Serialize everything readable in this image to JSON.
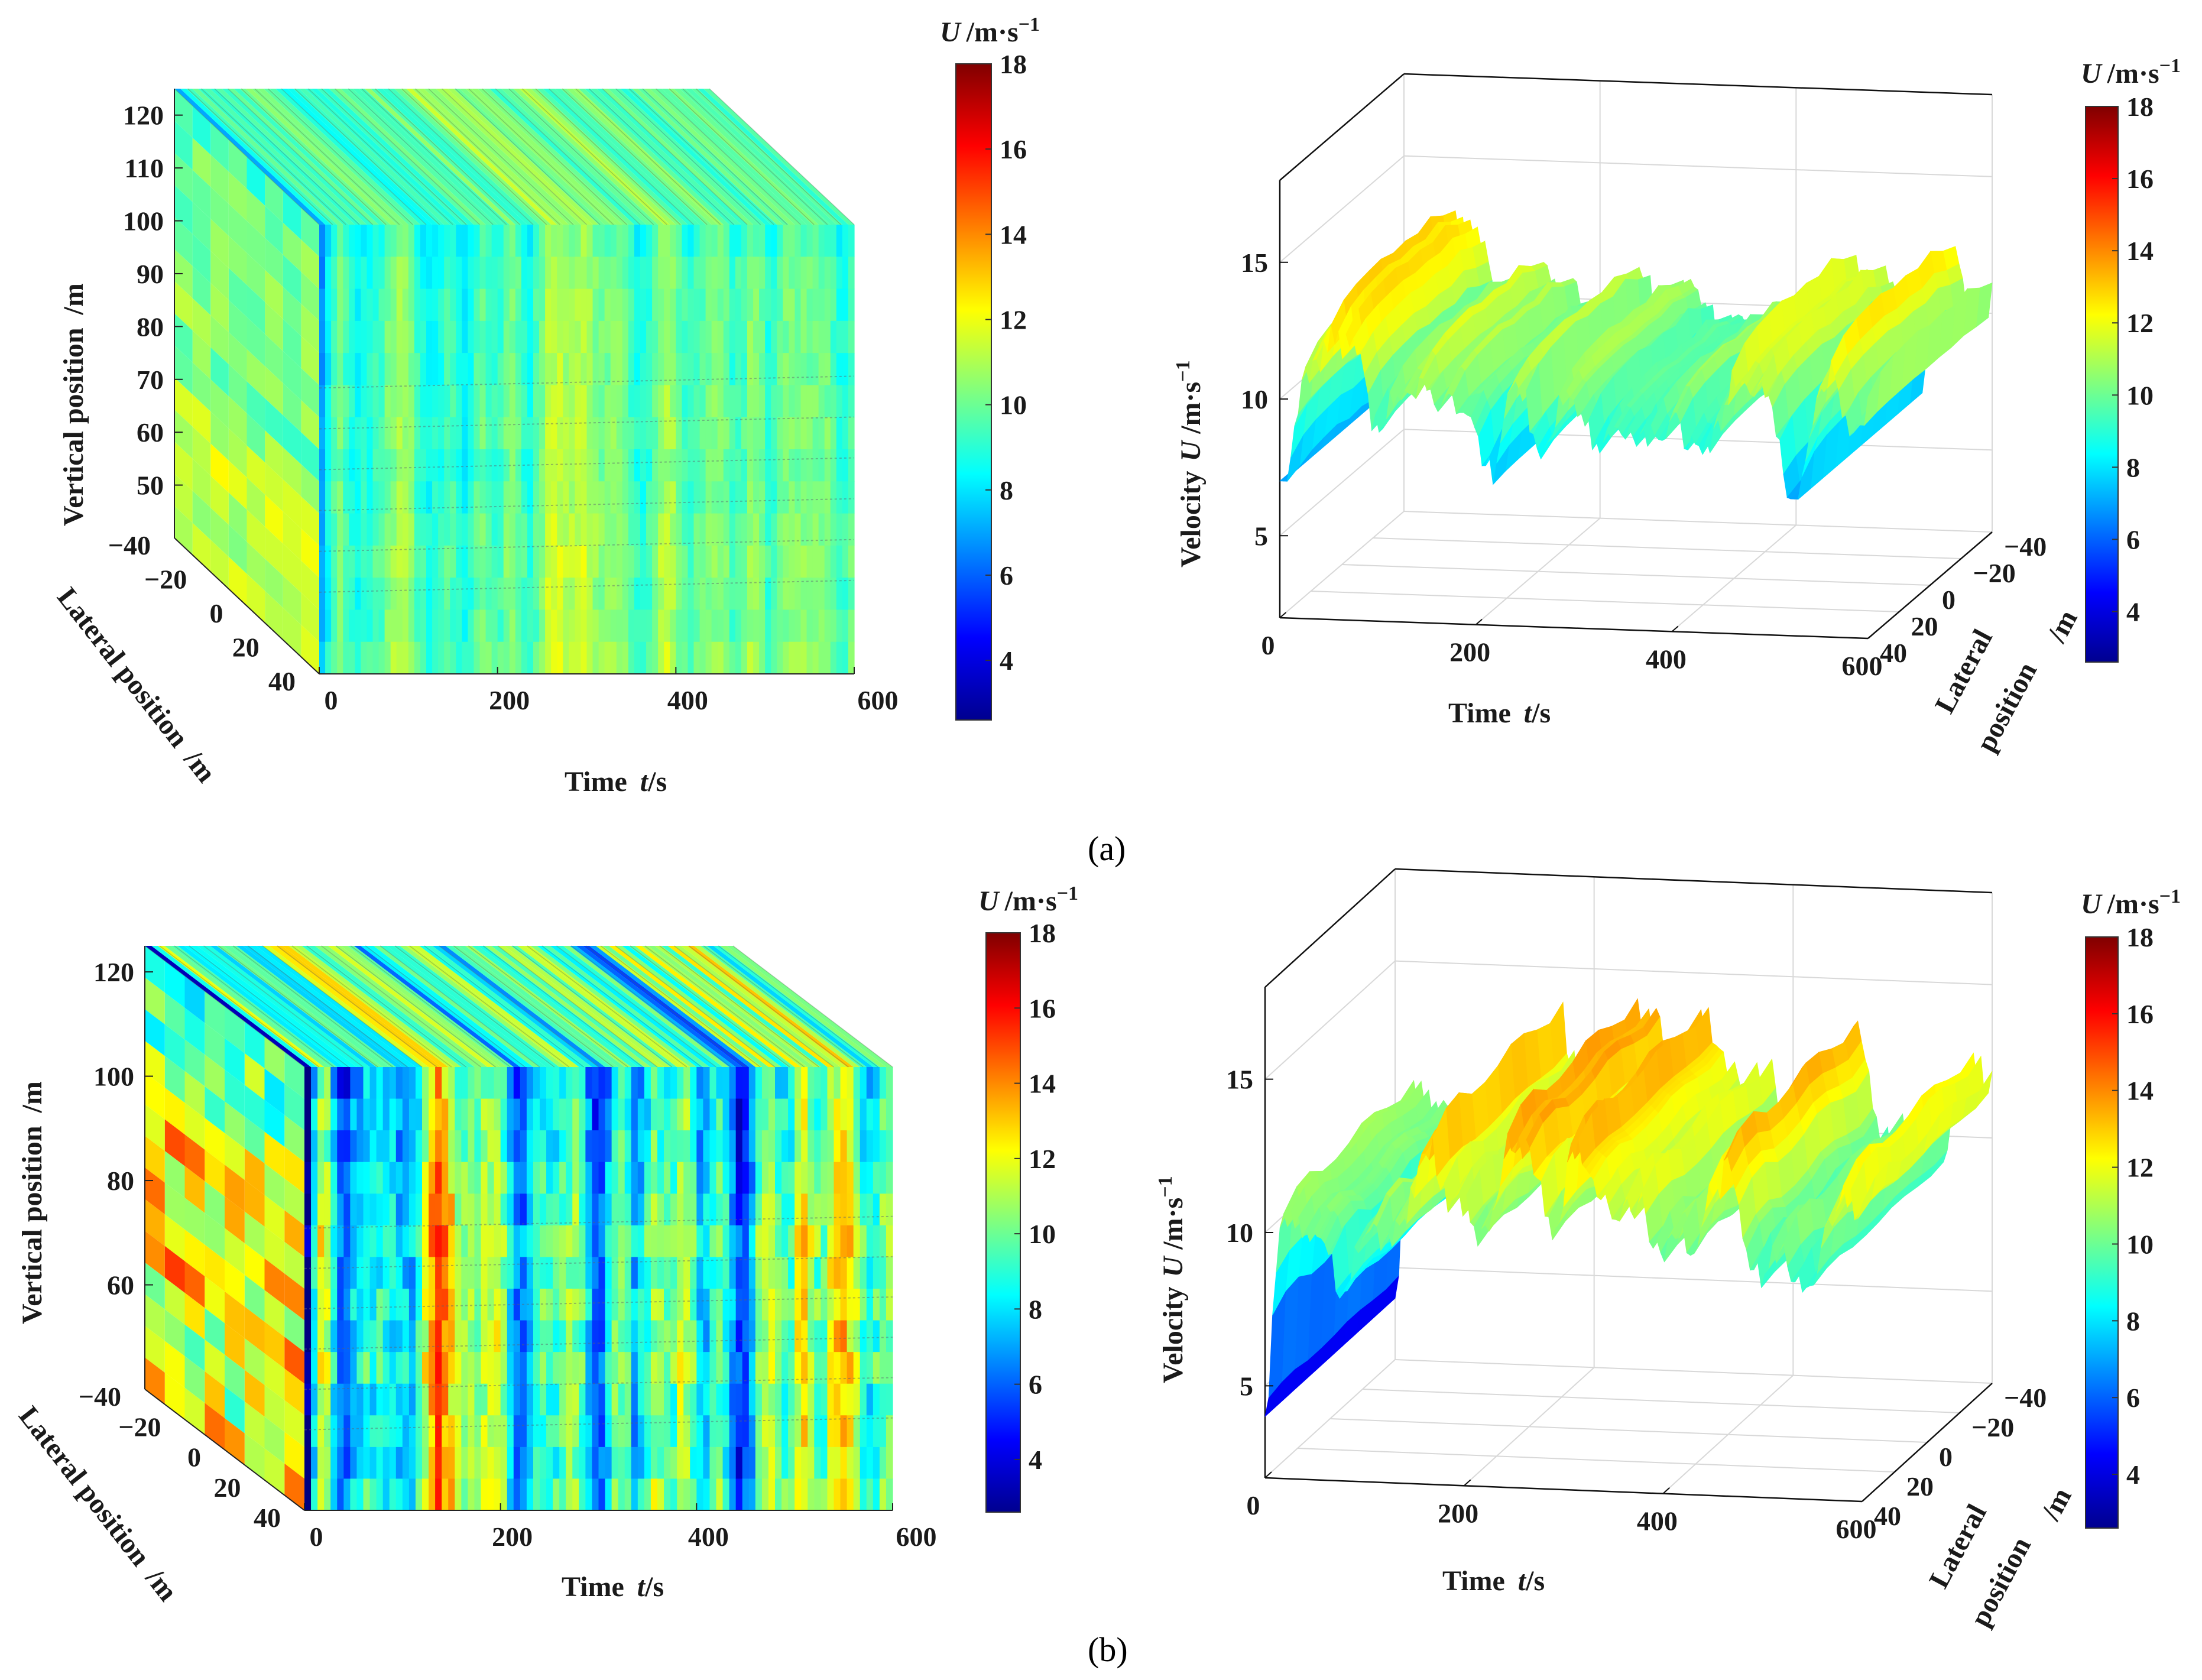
{
  "figure": {
    "caption_a": "(a)",
    "caption_b": "(b)"
  },
  "colorbar": {
    "title_symbol": "U",
    "title_unit": "/m·s",
    "title_exp": "−1",
    "range": [
      2.6,
      18
    ],
    "left_ticks": [
      "4",
      "6",
      "8",
      "10",
      "12",
      "14",
      "16",
      "18"
    ],
    "right_ticks": [
      "4",
      "6",
      "8",
      "10",
      "12",
      "14",
      "16",
      "18"
    ],
    "colormap": "jet"
  },
  "chart_data": [
    {
      "panel": "a-left",
      "type": "heatmap",
      "description_kind": "3D volume slice plot of wind velocity field",
      "x_axis": {
        "label": "Time",
        "label_var": "t",
        "label_unit": "/s",
        "range": [
          0,
          600
        ],
        "ticks": [
          "0",
          "200",
          "400",
          "600"
        ]
      },
      "y_axis": {
        "label": "Lateral position",
        "label_unit": "/m",
        "range": [
          -40,
          40
        ],
        "ticks": [
          "−40",
          "−20",
          "0",
          "20",
          "40"
        ]
      },
      "z_axis": {
        "label": "Vertical position",
        "label_unit": "/m",
        "range": [
          40,
          125
        ],
        "ticks": [
          "50",
          "60",
          "70",
          "80",
          "90",
          "100",
          "110",
          "120"
        ]
      },
      "color_range": [
        2.6,
        18
      ],
      "mean_velocity": 10,
      "velocity_spread": [
        7,
        12.5
      ]
    },
    {
      "panel": "a-right",
      "type": "area",
      "description_kind": "3D surface of velocity vs time and lateral position",
      "x_axis": {
        "label": "Time",
        "label_var": "t",
        "label_unit": "/s",
        "range": [
          0,
          600
        ],
        "ticks": [
          "0",
          "200",
          "400",
          "600"
        ]
      },
      "y_axis": {
        "label_line1": "Lateral",
        "label_line2": "position",
        "label_unit": "/m",
        "range": [
          -40,
          40
        ],
        "ticks": [
          "−40",
          "−20",
          "0",
          "20",
          "40"
        ]
      },
      "z_axis": {
        "label": "Velocity",
        "label_var": "U",
        "label_unit": "/m·s",
        "label_exp": "−1",
        "range": [
          2,
          18
        ],
        "ticks": [
          "5",
          "10",
          "15"
        ]
      },
      "mean_velocity": 10.5,
      "velocity_spread": [
        7,
        15
      ]
    },
    {
      "panel": "b-left",
      "type": "heatmap",
      "description_kind": "3D volume slice plot of wind velocity field",
      "x_axis": {
        "label": "Time",
        "label_var": "t",
        "label_unit": "/s",
        "range": [
          0,
          600
        ],
        "ticks": [
          "0",
          "200",
          "400",
          "600"
        ]
      },
      "y_axis": {
        "label": "Lateral position",
        "label_unit": "/m",
        "range": [
          -40,
          40
        ],
        "ticks": [
          "−40",
          "−20",
          "0",
          "20",
          "40"
        ]
      },
      "z_axis": {
        "label": "Vertical position",
        "label_unit": "/m",
        "range": [
          40,
          125
        ],
        "ticks": [
          "60",
          "80",
          "100",
          "120"
        ]
      },
      "color_range": [
        2.6,
        18
      ],
      "mean_velocity": 10,
      "velocity_spread": [
        3,
        17
      ]
    },
    {
      "panel": "b-right",
      "type": "area",
      "description_kind": "3D surface of velocity vs time and lateral position",
      "x_axis": {
        "label": "Time",
        "label_var": "t",
        "label_unit": "/s",
        "range": [
          0,
          600
        ],
        "ticks": [
          "0",
          "200",
          "400",
          "600"
        ]
      },
      "y_axis": {
        "label_line1": "Lateral",
        "label_line2": "position",
        "label_unit": "/m",
        "range": [
          -40,
          40
        ],
        "ticks": [
          "−40",
          "−20",
          "0",
          "20",
          "40"
        ]
      },
      "z_axis": {
        "label": "Velocity",
        "label_var": "U",
        "label_unit": "/m·s",
        "label_exp": "−1",
        "range": [
          2,
          18
        ],
        "ticks": [
          "5",
          "10",
          "15"
        ]
      },
      "mean_velocity": 11,
      "velocity_spread": [
        4,
        17.5
      ]
    }
  ]
}
